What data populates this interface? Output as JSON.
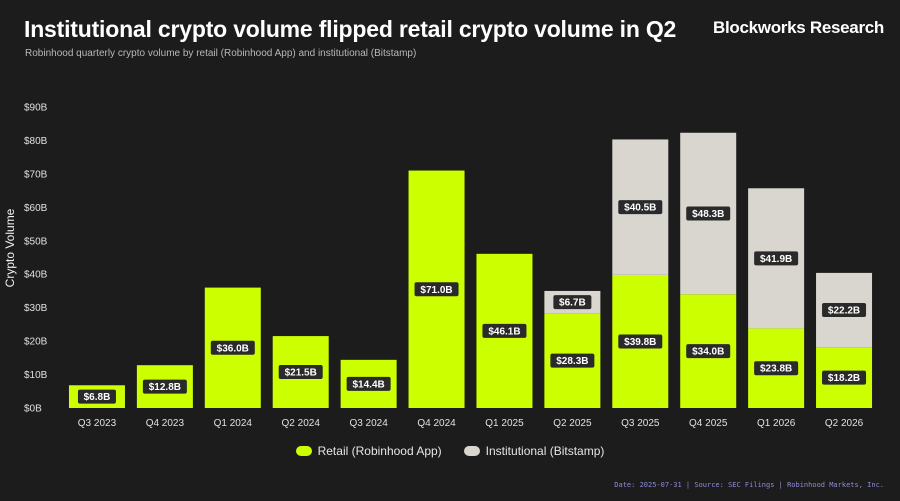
{
  "header": {
    "title": "Institutional crypto volume flipped retail crypto volume in Q2",
    "subtitle": "Robinhood quarterly crypto volume by retail (Robinhood App) and institutional (Bitstamp)",
    "brand": "Blockworks Research"
  },
  "footer": {
    "text": "Date: 2025-07-31  |  Source: SEC Filings | Robinhood Markets, Inc."
  },
  "colors": {
    "retail": "#ccff00",
    "institutional": "#d9d5cf",
    "background": "#1c1c1c"
  },
  "chart_data": {
    "type": "bar",
    "stacked": true,
    "ylabel": "Crypto Volume",
    "xlabel": "",
    "ylim": [
      0,
      90
    ],
    "yticks": [
      0,
      10,
      20,
      30,
      40,
      50,
      60,
      70,
      80,
      90
    ],
    "ytick_labels": [
      "$0B",
      "$10B",
      "$20B",
      "$30B",
      "$40B",
      "$50B",
      "$60B",
      "$70B",
      "$80B",
      "$90B"
    ],
    "categories": [
      "Q3 2023",
      "Q4 2023",
      "Q1 2024",
      "Q2 2024",
      "Q3 2024",
      "Q4 2024",
      "Q1 2025",
      "Q2 2025",
      "Q3 2025",
      "Q4 2025",
      "Q1 2026",
      "Q2 2026"
    ],
    "series": [
      {
        "name": "Retail (Robinhood App)",
        "values": [
          6.8,
          12.8,
          36.0,
          21.5,
          14.4,
          71.0,
          46.1,
          28.3,
          39.8,
          34.0,
          23.8,
          18.2
        ],
        "labels": [
          "$6.8B",
          "$12.8B",
          "$36.0B",
          "$21.5B",
          "$14.4B",
          "$71.0B",
          "$46.1B",
          "$28.3B",
          "$39.8B",
          "$34.0B",
          "$23.8B",
          "$18.2B"
        ]
      },
      {
        "name": "Institutional (Bitstamp)",
        "values": [
          null,
          null,
          null,
          null,
          null,
          null,
          null,
          6.7,
          40.5,
          48.3,
          41.9,
          22.2
        ],
        "labels": [
          "",
          "",
          "",
          "",
          "",
          "",
          "",
          "$6.7B",
          "$40.5B",
          "$48.3B",
          "$41.9B",
          "$22.2B"
        ]
      }
    ],
    "legend": "bottom-center",
    "grid": false
  }
}
